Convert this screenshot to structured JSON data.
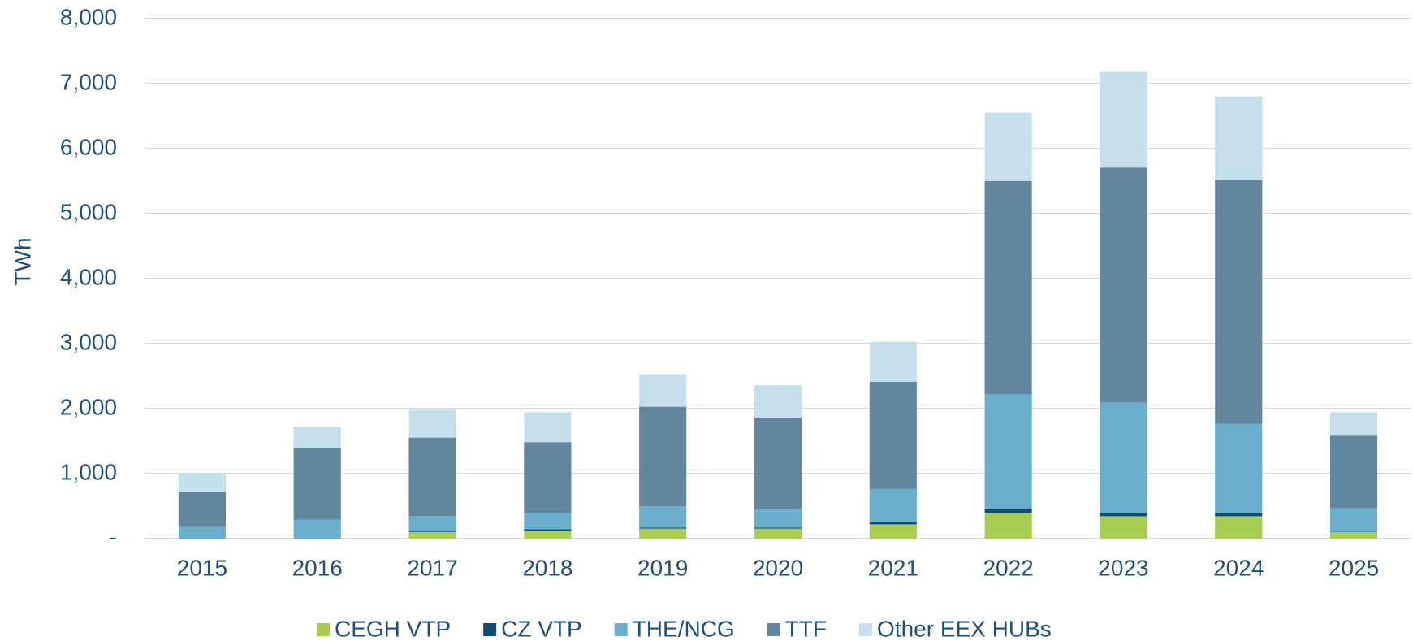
{
  "chart_data": {
    "type": "stacked_bar",
    "y_label": "TWh",
    "categories": [
      "2015",
      "2016",
      "2017",
      "2018",
      "2019",
      "2020",
      "2021",
      "2022",
      "2023",
      "2024",
      "2025"
    ],
    "series": [
      {
        "name": "CEGH VTP",
        "color": "#a9cc52",
        "values": [
          0,
          0,
          100,
          125,
          155,
          155,
          220,
          400,
          345,
          345,
          100
        ]
      },
      {
        "name": "CZ VTP",
        "color": "#0f4c75",
        "values": [
          0,
          0,
          10,
          20,
          15,
          15,
          30,
          60,
          45,
          45,
          5
        ]
      },
      {
        "name": "THE/NCG",
        "color": "#6aafcc",
        "values": [
          180,
          290,
          240,
          255,
          330,
          290,
          515,
          1760,
          1705,
          1375,
          365
        ]
      },
      {
        "name": "TTF",
        "color": "#62869e",
        "values": [
          540,
          1100,
          1205,
          1085,
          1530,
          1400,
          1650,
          3280,
          3615,
          3750,
          1115
        ]
      },
      {
        "name": "Other EEX HUBs",
        "color": "#c5e0ec",
        "values": [
          290,
          330,
          430,
          460,
          500,
          500,
          615,
          1055,
          1470,
          1290,
          360
        ]
      }
    ],
    "ylim": [
      0,
      8000
    ],
    "yticks": [
      {
        "value": 0,
        "label": "-"
      },
      {
        "value": 1000,
        "label": "1,000"
      },
      {
        "value": 2000,
        "label": "2,000"
      },
      {
        "value": 3000,
        "label": "3,000"
      },
      {
        "value": 4000,
        "label": "4,000"
      },
      {
        "value": 5000,
        "label": "5,000"
      },
      {
        "value": 6000,
        "label": "6,000"
      },
      {
        "value": 7000,
        "label": "7,000"
      },
      {
        "value": 8000,
        "label": "8,000"
      }
    ],
    "grid": true,
    "legend": "bottom"
  }
}
